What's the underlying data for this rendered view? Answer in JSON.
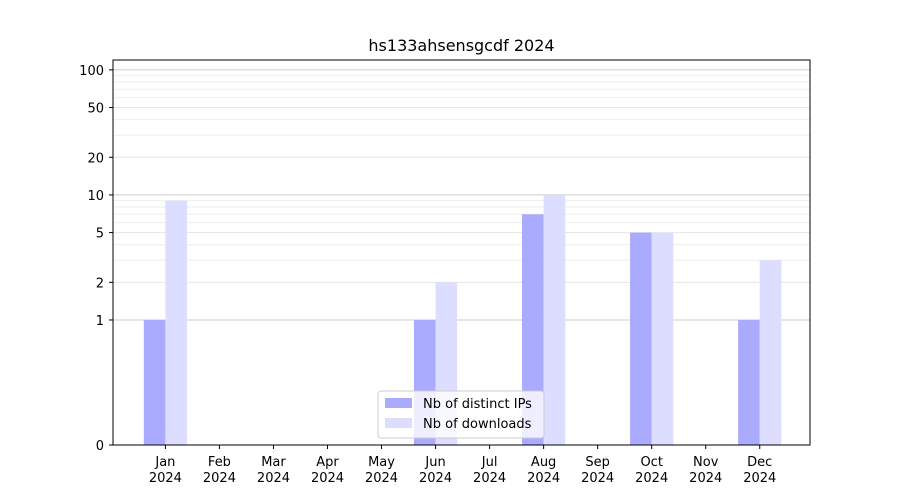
{
  "chart_data": {
    "type": "bar",
    "title": "hs133ahsensgcdf 2024",
    "xlabel": "",
    "ylabel": "",
    "y_scale": "symlog",
    "yticks": [
      0,
      1,
      2,
      5,
      10,
      20,
      50,
      100
    ],
    "ylim": [
      0,
      120
    ],
    "categories": [
      [
        "Jan",
        "2024"
      ],
      [
        "Feb",
        "2024"
      ],
      [
        "Mar",
        "2024"
      ],
      [
        "Apr",
        "2024"
      ],
      [
        "May",
        "2024"
      ],
      [
        "Jun",
        "2024"
      ],
      [
        "Jul",
        "2024"
      ],
      [
        "Aug",
        "2024"
      ],
      [
        "Sep",
        "2024"
      ],
      [
        "Oct",
        "2024"
      ],
      [
        "Nov",
        "2024"
      ],
      [
        "Dec",
        "2024"
      ]
    ],
    "series": [
      {
        "name": "Nb of distinct IPs",
        "color": "#aaaaff",
        "values": [
          1,
          0,
          0,
          0,
          0,
          1,
          0,
          7,
          0,
          5,
          0,
          1
        ]
      },
      {
        "name": "Nb of downloads",
        "color": "#ddddff",
        "values": [
          9,
          0,
          0,
          0,
          0,
          2,
          0,
          10,
          0,
          5,
          0,
          3
        ]
      }
    ],
    "grid": true,
    "legend_position": "lower-center"
  }
}
